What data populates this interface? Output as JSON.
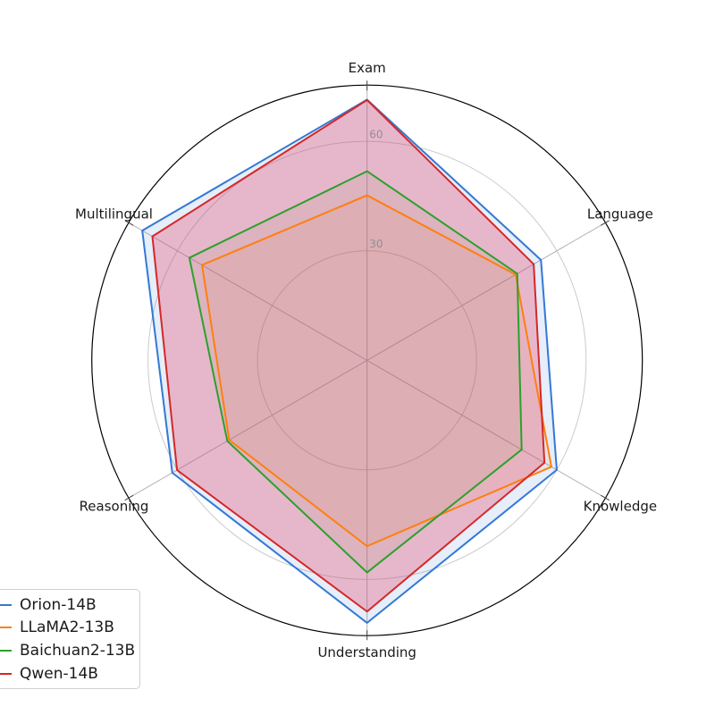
{
  "chart_data": {
    "type": "radar",
    "title": "",
    "categories": [
      "Exam",
      "Language",
      "Knowledge",
      "Understanding",
      "Reasoning",
      "Multilingual"
    ],
    "rings": [
      30,
      60
    ],
    "rmax": 75.4,
    "grid": true,
    "legend_position": "lower-left",
    "series": [
      {
        "name": "Orion-14B",
        "color": "#3478d4",
        "fill": "#3478d4",
        "fill_opacity": 0.13,
        "values": [
          71.4,
          55.0,
          60.0,
          71.9,
          61.6,
          71.1
        ]
      },
      {
        "name": "LLaMA2-13B",
        "color": "#ff7f0e",
        "fill": "#ff7f0e",
        "fill_opacity": 0.07,
        "values": [
          45.2,
          47.0,
          58.3,
          50.9,
          43.6,
          52.2
        ]
      },
      {
        "name": "Baichuan2-13B",
        "color": "#2ca02c",
        "fill": "#2ca02c",
        "fill_opacity": 0.08,
        "values": [
          51.8,
          47.5,
          48.9,
          58.1,
          44.2,
          56.2
        ]
      },
      {
        "name": "Qwen-14B",
        "color": "#d62728",
        "fill": "#e8456a",
        "fill_opacity": 0.32,
        "values": [
          71.3,
          52.7,
          56.1,
          68.8,
          60.1,
          67.9
        ]
      }
    ],
    "style": {
      "ring_color": "#cbcbcb",
      "spoke_color": "#b3b3b3",
      "outer_circle_color": "#000000",
      "tick_label_color": "#8f8f8f",
      "axis_label_color": "#1a1a1a"
    }
  }
}
